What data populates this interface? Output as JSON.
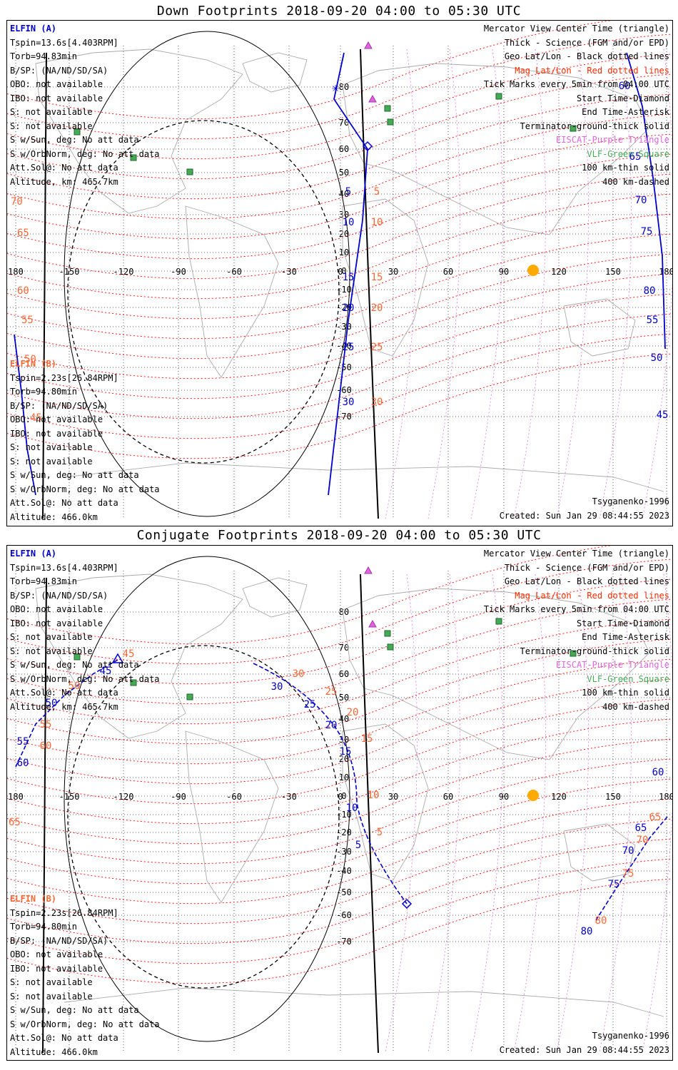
{
  "panels": [
    {
      "title": "Down Footprints 2018-09-20 04:00 to 05:30 UTC",
      "left_info_a": [
        "ELFIN (A)",
        "Tspin=13.6s[4.403RPM]",
        "Torb=94.83min",
        "B/SP: (NA/ND/SD/SA)",
        "OBO: not available",
        "IBO: not available",
        "S: not available",
        "S: not available",
        "S w/Sun, deg: No att data",
        "S w/OrbNorm, deg: No att data",
        "Att.Sol@: No att data",
        "Altitude, km: 465.7km"
      ],
      "left_info_b": [
        "ELFIN (B)",
        "Tspin=2.23s[26.84RPM]",
        "Torb=94.80min",
        "B/SP: (NA/ND/SD/SA)",
        "OBO: not available",
        "IBO: not available",
        "S: not available",
        "S: not available",
        "S w/Sun, deg: No att data",
        "S w/OrbNorm, deg: No att data",
        "Att.Sol@: No att data",
        "Altitude: 466.0km"
      ],
      "right_info": [
        "Mercator View Center Time (triangle)",
        "Thick - Science (FGM and/or EPD)",
        "Geo Lat/Lon - Black dotted lines",
        "Mag Lat/Lon - Red dotted lines",
        "Tick Marks every 5min from 04:00 UTC",
        "Start Time-Diamond",
        "End Time-Asterisk",
        "Terminator-ground-thick solid",
        "EISCAT-Purple Triangle",
        "VLF-Green Square",
        "100 km-thin solid",
        "400 km-dashed"
      ],
      "model": "Tsyganenko-1996",
      "created": "Created: Sun Jan 29 08:44:55 2023",
      "lon_labels": [
        "180",
        "-150",
        "-120",
        "-90",
        "-60",
        "-30",
        "0",
        "30",
        "60",
        "90",
        "120",
        "150",
        "180"
      ],
      "lat_labels": [
        "80",
        "70",
        "60",
        "50",
        "40",
        "30",
        "20",
        "10",
        "0",
        "-10",
        "-20",
        "-30",
        "-40",
        "-50",
        "-60",
        "-70"
      ],
      "mag_lat_labels": [
        "70",
        "65",
        "60",
        "55",
        "50",
        "45"
      ],
      "track_a_ticks": [
        "5",
        "10",
        "15",
        "20",
        "25",
        "30"
      ],
      "track_b_ticks": [
        "60",
        "65",
        "70",
        "75",
        "80",
        "55",
        "50",
        "45"
      ]
    },
    {
      "title": "Conjugate Footprints 2018-09-20 04:00 to 05:30 UTC",
      "left_info_a": [
        "ELFIN (A)",
        "Tspin=13.6s[4.403RPM]",
        "Torb=94.83min",
        "B/SP: (NA/ND/SD/SA)",
        "OBO: not available",
        "IBO: not available",
        "S: not available",
        "S: not available",
        "S w/Sun, deg: No att data",
        "S w/OrbNorm, deg: No att data",
        "Att.Sol@: No att data",
        "Altitude, km: 465.7km"
      ],
      "left_info_b": [
        "ELFIN (B)",
        "Tspin=2.23s[26.84RPM]",
        "Torb=94.80min",
        "B/SP: (NA/ND/SD/SA)",
        "OBO: not available",
        "IBO: not available",
        "S: not available",
        "S: not available",
        "S w/Sun, deg: No att data",
        "S w/OrbNorm, deg: No att data",
        "Att.Sol@: No att data",
        "Altitude: 466.0km"
      ],
      "right_info": [
        "Mercator View Center Time (triangle)",
        "Thick - Science (FGM and/or EPD)",
        "Geo Lat/Lon - Black dotted lines",
        "Mag Lat/Lon - Red dotted lines",
        "Tick Marks every 5min from 04:00 UTC",
        "Start Time-Diamond",
        "End Time-Asterisk",
        "Terminator-ground-thick solid",
        "EISCAT-Purple Triangle",
        "VLF-Green Square",
        "100 km-thin solid",
        "400 km-dashed"
      ],
      "model": "Tsyganenko-1996",
      "created": "Created: Sun Jan 29 08:44:55 2023",
      "lon_labels": [
        "180",
        "-150",
        "-120",
        "-90",
        "-60",
        "-30",
        "0",
        "30",
        "60",
        "90",
        "120",
        "150",
        "180"
      ],
      "lat_labels": [
        "80",
        "70",
        "60",
        "50",
        "40",
        "30",
        "20",
        "10",
        "0",
        "-10",
        "-20",
        "-30",
        "-40",
        "-50",
        "-60",
        "-70"
      ],
      "mag_lat_label": "65",
      "track_a_ticks": [
        "45",
        "50",
        "55",
        "60",
        "30",
        "25",
        "20",
        "15",
        "10",
        "5"
      ],
      "track_b_ticks": [
        "60",
        "65",
        "70",
        "75",
        "80"
      ]
    }
  ],
  "colors": {
    "elfin_a": "#0000cc",
    "elfin_b": "#ff6633",
    "mag_grid": "#ff0000",
    "geo_grid": "#000000",
    "eiscat": "#dd66dd",
    "vlf": "#44aa55",
    "sun": "#ffaa00"
  }
}
